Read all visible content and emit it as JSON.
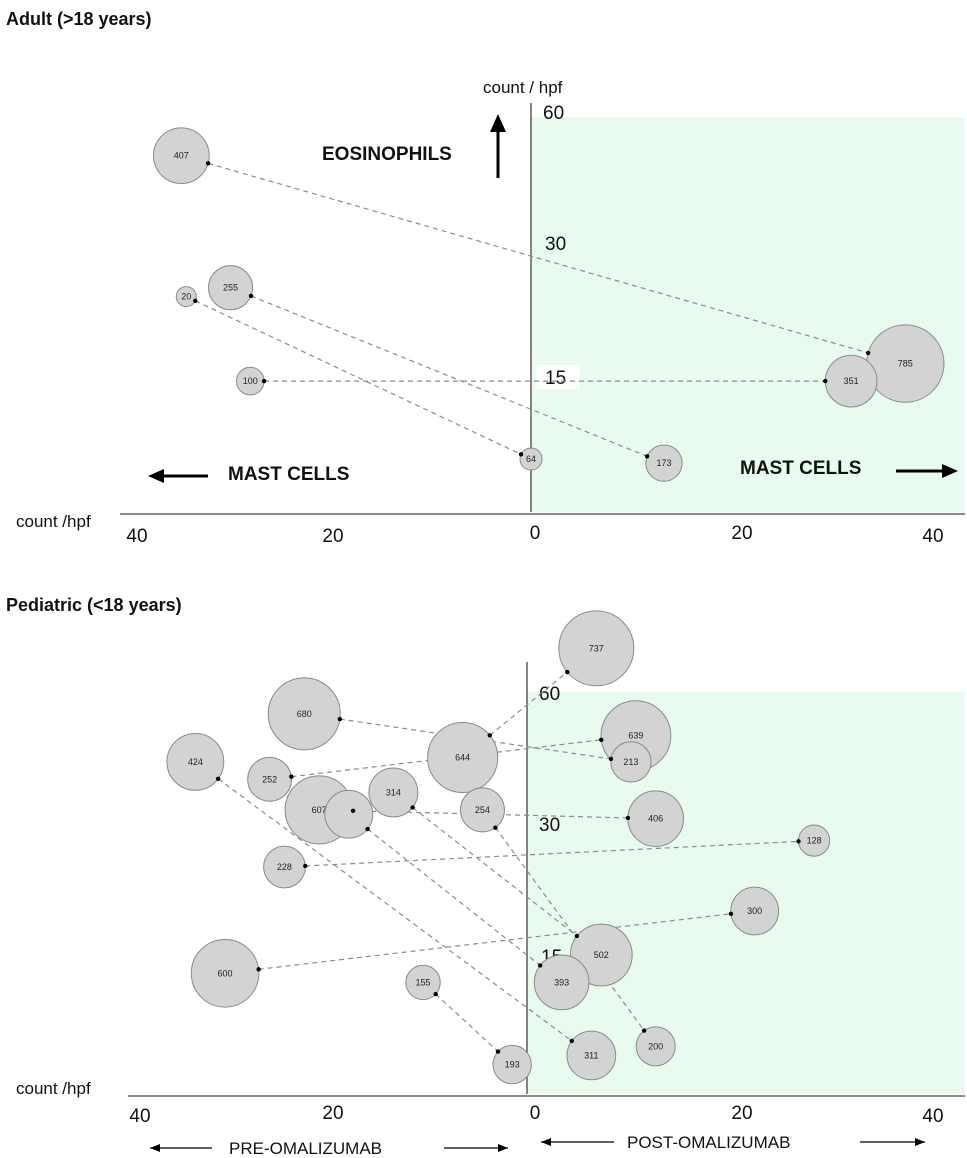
{
  "chart_data": [
    {
      "type": "scatter",
      "title": "Adult (>18 years)",
      "x_axis_label": "count /hpf",
      "y_axis_label": "count / hpf",
      "x_ticks": [
        "40",
        "20",
        "0",
        "20",
        "40"
      ],
      "y_ticks": [
        "60",
        "30",
        "15"
      ],
      "x_range": [
        -40,
        40
      ],
      "left_arrow_label": "MAST CELLS",
      "right_arrow_label": "MAST CELLS",
      "up_arrow_label": "EOSINOPHILS",
      "post_region_color": "#e9fbee",
      "pairs": [
        {
          "pre": {
            "label": "407",
            "mast": -35.5,
            "eos": 50
          },
          "post": {
            "label": "785",
            "mast": 38,
            "eos": 16.5
          }
        },
        {
          "pre": {
            "label": "20",
            "mast": -35,
            "eos": 24
          },
          "post": {
            "label": "64",
            "mast": 0,
            "eos": 5
          }
        },
        {
          "pre": {
            "label": "255",
            "mast": -30.5,
            "eos": 25
          },
          "post": {
            "label": "173",
            "mast": 13.5,
            "eos": 4.5
          }
        },
        {
          "pre": {
            "label": "100",
            "mast": -28.5,
            "eos": 14.5
          },
          "post": {
            "label": "351",
            "mast": 32.5,
            "eos": 14.5
          }
        }
      ]
    },
    {
      "type": "scatter",
      "title": "Pediatric (<18 years)",
      "x_axis_label": "count /hpf",
      "y_axis_label": "",
      "x_ticks": [
        "40",
        "20",
        "0",
        "20",
        "40"
      ],
      "y_ticks": [
        "60",
        "30",
        "15"
      ],
      "x_range": [
        -40,
        40
      ],
      "pre_label": "PRE-OMALIZUMAB",
      "post_label": "POST-OMALIZUMAB",
      "post_region_color": "#e9fbee",
      "pairs": [
        {
          "pre": {
            "label": "680",
            "mast": -22.5,
            "eos": 55
          },
          "post": {
            "label": "213",
            "mast": 10.5,
            "eos": 44
          }
        },
        {
          "pre": {
            "label": "644",
            "mast": -6.5,
            "eos": 45
          },
          "post": {
            "label": "737",
            "mast": 7,
            "eos": 70
          }
        },
        {
          "pre": {
            "label": "424",
            "mast": -33.5,
            "eos": 44
          },
          "post": {
            "label": "311",
            "mast": 6.5,
            "eos": 4
          }
        },
        {
          "pre": {
            "label": "252",
            "mast": -26,
            "eos": 40
          },
          "post": {
            "label": "639",
            "mast": 11,
            "eos": 50
          }
        },
        {
          "pre": {
            "label": "607",
            "mast": -21,
            "eos": 33
          },
          "post": {
            "label": "406",
            "mast": 13,
            "eos": 31
          }
        },
        {
          "pre": {
            "label": "314",
            "mast": -13.5,
            "eos": 37
          },
          "post": {
            "label": "502",
            "mast": 7.5,
            "eos": 15
          }
        },
        {
          "pre": {
            "label": "254",
            "mast": -4.5,
            "eos": 33
          },
          "post": {
            "label": "200",
            "mast": 13,
            "eos": 5
          }
        },
        {
          "pre": {
            "label": "228",
            "mast": -24.5,
            "eos": 25
          },
          "post": {
            "label": "128",
            "mast": 29,
            "eos": 28
          }
        },
        {
          "pre": {
            "label": "600",
            "mast": -30.5,
            "eos": 13
          },
          "post": {
            "label": "300",
            "mast": 23,
            "eos": 20
          }
        },
        {
          "pre": {
            "label": "155",
            "mast": -10.5,
            "eos": 12
          },
          "post": {
            "label": "193",
            "mast": -1.5,
            "eos": 3
          }
        },
        {
          "pre": {
            "label": "",
            "mast": -18,
            "eos": 32
          },
          "post": {
            "label": "393",
            "mast": 3.5,
            "eos": 12
          }
        }
      ]
    }
  ]
}
